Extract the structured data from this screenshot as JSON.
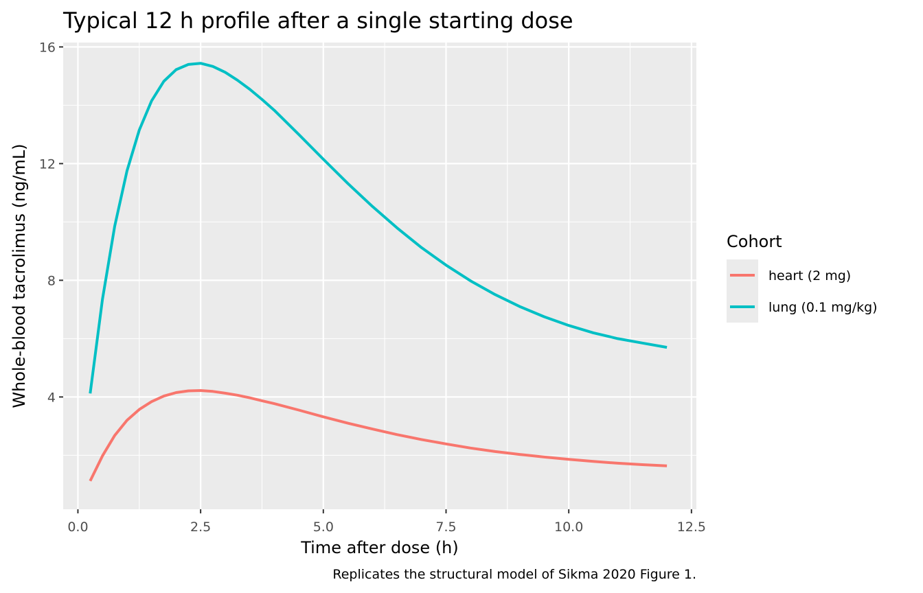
{
  "chart_data": {
    "type": "line",
    "title": "Typical 12 h profile after a single starting dose",
    "xlabel": "Time after dose (h)",
    "ylabel": "Whole-blood tacrolimus (ng/mL)",
    "caption": "Replicates the structural model of Sikma 2020 Figure 1.",
    "xlim": [
      -0.3,
      12.6
    ],
    "ylim": [
      0.15,
      16.15
    ],
    "x_ticks": [
      0,
      2.5,
      5,
      7.5,
      10,
      12.5
    ],
    "x_tick_labels": [
      "0.0",
      "2.5",
      "5.0",
      "7.5",
      "10.0",
      "12.5"
    ],
    "y_ticks": [
      4,
      8,
      12,
      16
    ],
    "y_tick_labels": [
      "4",
      "8",
      "12",
      "16"
    ],
    "grid": true,
    "legend": {
      "title": "Cohort",
      "position": "right"
    },
    "x": [
      0.25,
      0.5,
      0.75,
      1.0,
      1.25,
      1.5,
      1.75,
      2.0,
      2.25,
      2.5,
      2.75,
      3.0,
      3.25,
      3.5,
      3.75,
      4.0,
      4.5,
      5.0,
      5.5,
      6.0,
      6.5,
      7.0,
      7.5,
      8.0,
      8.5,
      9.0,
      9.5,
      10.0,
      10.5,
      11.0,
      11.5,
      12.0
    ],
    "series": [
      {
        "name": "heart (2 mg)",
        "color": "#F8766D",
        "values": [
          1.12,
          1.98,
          2.68,
          3.2,
          3.57,
          3.84,
          4.03,
          4.15,
          4.21,
          4.22,
          4.19,
          4.13,
          4.06,
          3.97,
          3.87,
          3.77,
          3.55,
          3.32,
          3.1,
          2.9,
          2.71,
          2.54,
          2.39,
          2.25,
          2.13,
          2.03,
          1.94,
          1.86,
          1.79,
          1.73,
          1.68,
          1.64
        ]
      },
      {
        "name": "lung (0.1 mg/kg)",
        "color": "#00BFC4",
        "values": [
          4.12,
          7.35,
          9.85,
          11.75,
          13.15,
          14.15,
          14.82,
          15.22,
          15.4,
          15.44,
          15.33,
          15.13,
          14.86,
          14.55,
          14.2,
          13.83,
          13.0,
          12.15,
          11.32,
          10.53,
          9.8,
          9.12,
          8.52,
          7.98,
          7.51,
          7.1,
          6.75,
          6.45,
          6.2,
          6.0,
          5.85,
          5.7
        ]
      }
    ]
  }
}
